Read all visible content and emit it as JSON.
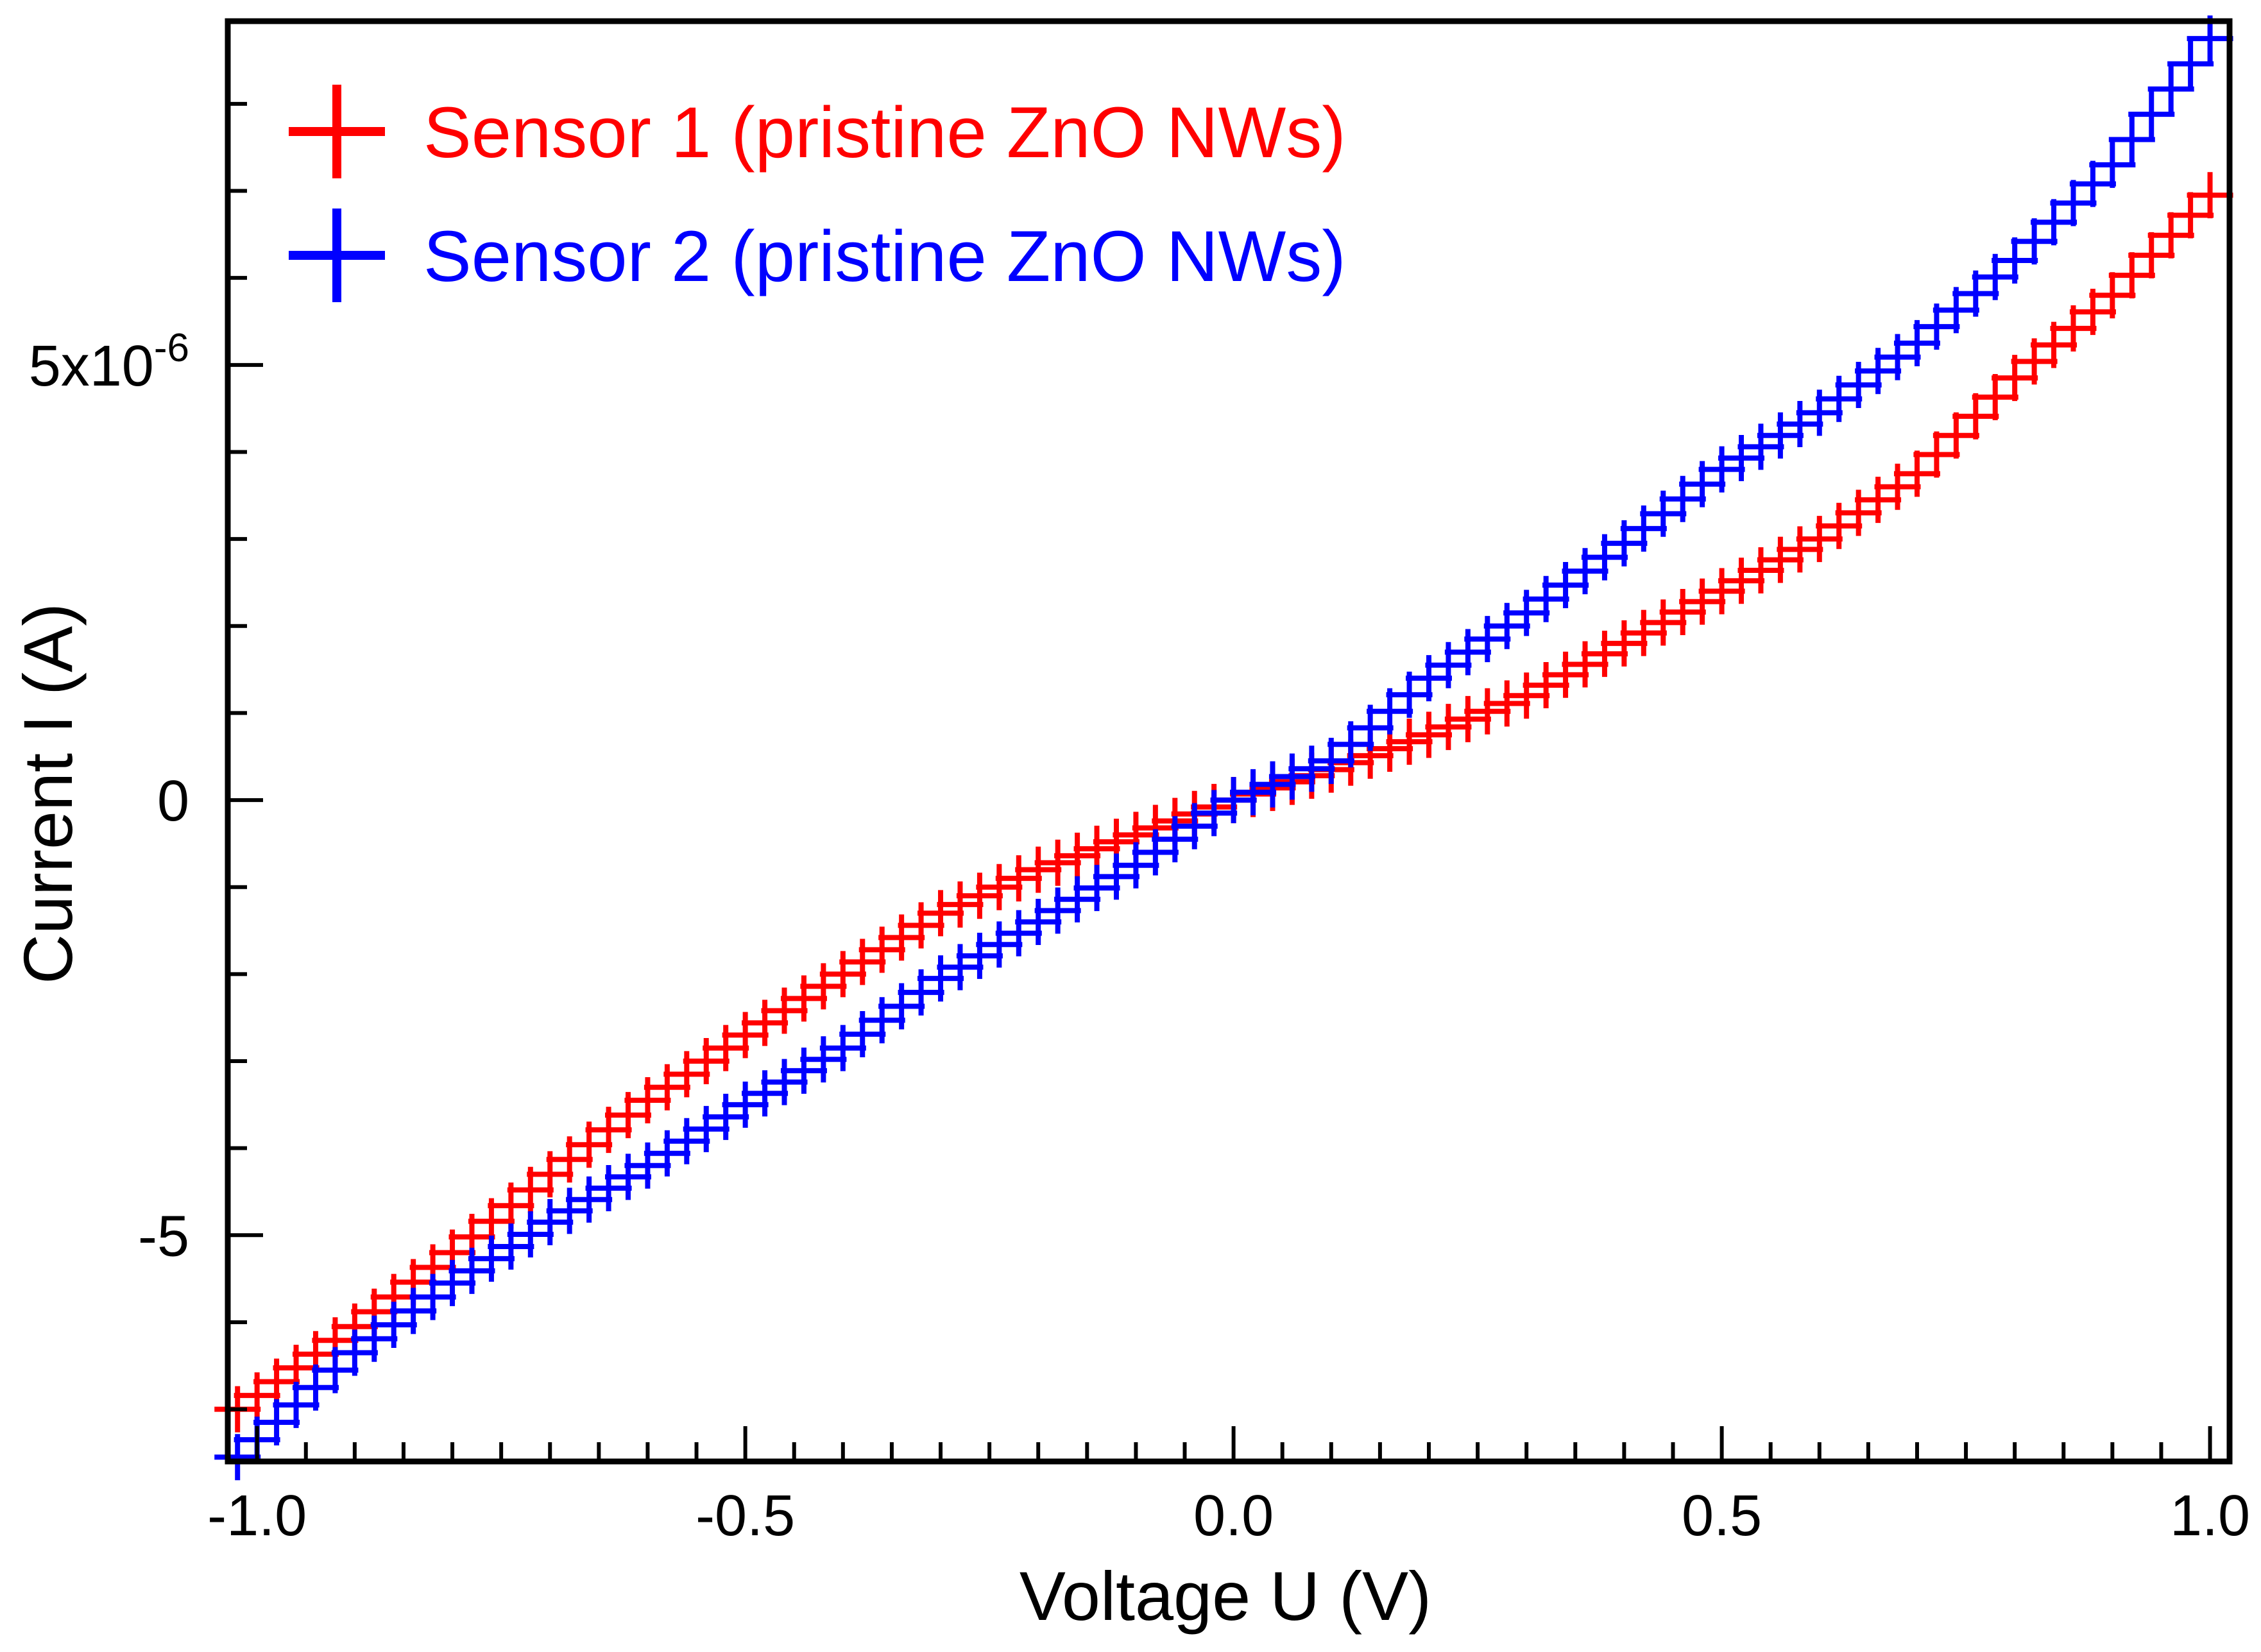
{
  "chart_data": {
    "type": "scatter",
    "title": "",
    "xlabel": "Voltage U (V)",
    "ylabel": "Current I (A)",
    "xlim": [
      -1.03,
      1.02
    ],
    "ylim": [
      -7.6e-06,
      8.95e-06
    ],
    "x_ticks": [
      {
        "value": -1.0,
        "label": "-1.0"
      },
      {
        "value": -0.5,
        "label": "-0.5"
      },
      {
        "value": 0.0,
        "label": "0.0"
      },
      {
        "value": 0.5,
        "label": "0.5"
      },
      {
        "value": 1.0,
        "label": "1.0"
      }
    ],
    "y_ticks": [
      {
        "value": -5e-06,
        "label": "-5",
        "exp": ""
      },
      {
        "value": 0,
        "label": "0",
        "exp": ""
      },
      {
        "value": 5e-06,
        "label": "5x10",
        "exp": "-6"
      }
    ],
    "legend_position": "top-left",
    "grid": false,
    "series": [
      {
        "name": "Sensor 1 (pristine ZnO NWs)",
        "color": "#ff0000",
        "marker": "plus",
        "data": [
          [
            -1.02,
            -7e-06
          ],
          [
            -0.9,
            -6.05e-06
          ],
          [
            -0.8,
            -5.2e-06
          ],
          [
            -0.7,
            -4.3e-06
          ],
          [
            -0.6,
            -3.45e-06
          ],
          [
            -0.5,
            -2.7e-06
          ],
          [
            -0.4,
            -2e-06
          ],
          [
            -0.3,
            -1.3e-06
          ],
          [
            -0.2,
            -8e-07
          ],
          [
            -0.1,
            -4e-07
          ],
          [
            0.0,
            0.0
          ],
          [
            0.1,
            3.5e-07
          ],
          [
            0.2,
            7.5e-07
          ],
          [
            0.3,
            1.2e-06
          ],
          [
            0.4,
            1.8e-06
          ],
          [
            0.5,
            2.4e-06
          ],
          [
            0.6,
            3e-06
          ],
          [
            0.7,
            3.75e-06
          ],
          [
            0.8,
            4.85e-06
          ],
          [
            0.9,
            5.8e-06
          ],
          [
            1.0,
            6.95e-06
          ]
        ]
      },
      {
        "name": "Sensor 2 (pristine ZnO NWs)",
        "color": "#0000ff",
        "marker": "plus",
        "data": [
          [
            -1.02,
            -7.55e-06
          ],
          [
            -0.9,
            -6.35e-06
          ],
          [
            -0.8,
            -5.55e-06
          ],
          [
            -0.7,
            -4.85e-06
          ],
          [
            -0.6,
            -4.2e-06
          ],
          [
            -0.5,
            -3.5e-06
          ],
          [
            -0.4,
            -2.85e-06
          ],
          [
            -0.3,
            -2.05e-06
          ],
          [
            -0.2,
            -1.4e-06
          ],
          [
            -0.1,
            -7.5e-07
          ],
          [
            0.0,
            0.0
          ],
          [
            0.1,
            4.5e-07
          ],
          [
            0.2,
            1.4e-06
          ],
          [
            0.3,
            2.15e-06
          ],
          [
            0.4,
            2.95e-06
          ],
          [
            0.5,
            3.8e-06
          ],
          [
            0.6,
            4.45e-06
          ],
          [
            0.7,
            5.25e-06
          ],
          [
            0.8,
            6.2e-06
          ],
          [
            0.9,
            7.3e-06
          ],
          [
            1.0,
            8.75e-06
          ]
        ]
      }
    ]
  }
}
